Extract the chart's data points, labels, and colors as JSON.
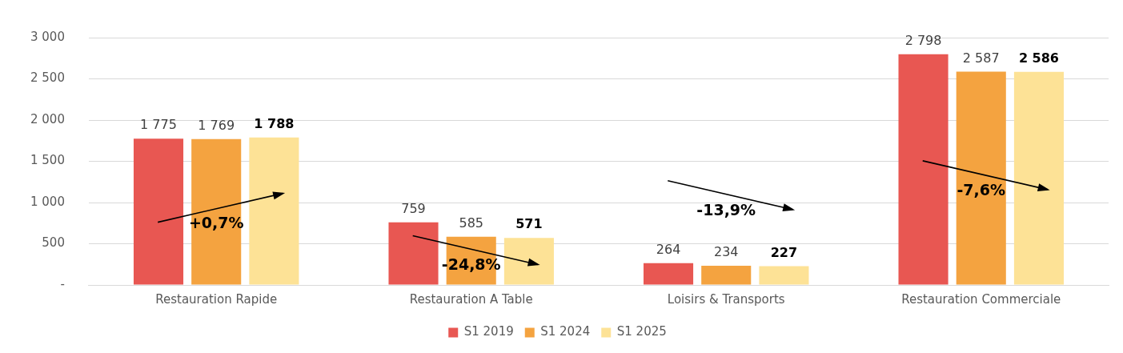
{
  "chart_data": {
    "type": "bar",
    "categories": [
      "Restauration Rapide",
      "Restauration A Table",
      "Loisirs & Transports",
      "Restauration Commerciale"
    ],
    "series": [
      {
        "name": "S1 2019",
        "color": "#e85752",
        "values": [
          1775,
          759,
          264,
          2798
        ],
        "value_labels": [
          "1 775",
          "759",
          "264",
          "2 798"
        ]
      },
      {
        "name": "S1 2024",
        "color": "#f4a340",
        "values": [
          1769,
          585,
          234,
          2587
        ],
        "value_labels": [
          "1 769",
          "585",
          "234",
          "2 587"
        ]
      },
      {
        "name": "S1 2025",
        "color": "#fde296",
        "values": [
          1788,
          571,
          227,
          2586
        ],
        "value_labels": [
          "1 788",
          "571",
          "227",
          "2 586"
        ]
      }
    ],
    "ylim": [
      0,
      3000
    ],
    "yticks": [
      {
        "value": 0,
        "label": "-"
      },
      {
        "value": 500,
        "label": "500"
      },
      {
        "value": 1000,
        "label": "1 000"
      },
      {
        "value": 1500,
        "label": "1 500"
      },
      {
        "value": 2000,
        "label": "2 000"
      },
      {
        "value": 2500,
        "label": "2 500"
      },
      {
        "value": 3000,
        "label": "3 000"
      }
    ],
    "grid": "y",
    "legend": "bottom",
    "annotations": [
      "+0,7%",
      "-24,8%",
      "-13,9%",
      "-7,6%"
    ]
  }
}
